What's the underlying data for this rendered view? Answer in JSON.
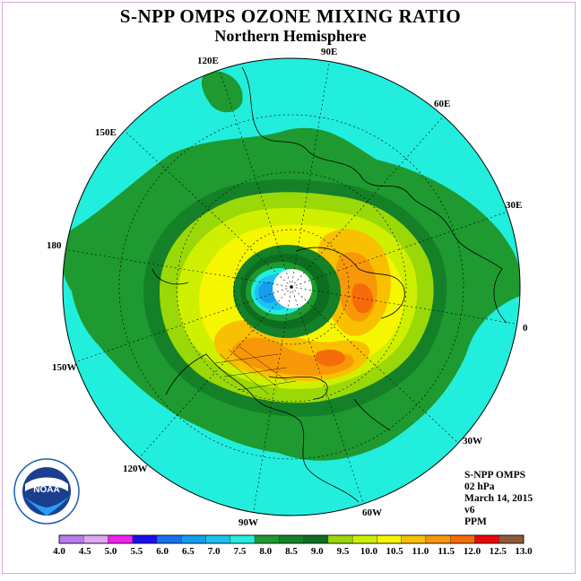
{
  "title": "S-NPP OMPS OZONE MIXING RATIO",
  "subtitle": "Northern Hemisphere",
  "longitudes": [
    "90E",
    "60E",
    "30E",
    "0",
    "30W",
    "60W",
    "90W",
    "120W",
    "150W",
    "180",
    "150E",
    "120E"
  ],
  "info": {
    "instrument": "S-NPP OMPS",
    "level": "02 hPa",
    "date": "March 14, 2015",
    "version": "v6",
    "units": "PPM"
  },
  "logo": {
    "text": "NOAA",
    "ring_text": "NATIONAL OCEANIC AND ATMOSPHERIC ADMINISTRATION · U.S. DEPARTMENT OF COMMERCE"
  },
  "colorbar": {
    "labels": [
      "4.0",
      "4.5",
      "5.0",
      "5.5",
      "6.0",
      "6.5",
      "7.0",
      "7.5",
      "8.0",
      "8.5",
      "9.0",
      "9.5",
      "10.0",
      "10.5",
      "11.0",
      "11.5",
      "12.0",
      "12.5",
      "13.0"
    ],
    "colors": [
      "#b77cf0",
      "#dfa8f2",
      "#ee22f0",
      "#1a0ef0",
      "#1670ee",
      "#149ef0",
      "#1cc2f0",
      "#22eedd",
      "#1e9a30",
      "#148028",
      "#0e6e20",
      "#9ad808",
      "#cef000",
      "#f6f600",
      "#f8c000",
      "#f89808",
      "#f66c08",
      "#ea0808",
      "#8e5a3a"
    ]
  }
}
